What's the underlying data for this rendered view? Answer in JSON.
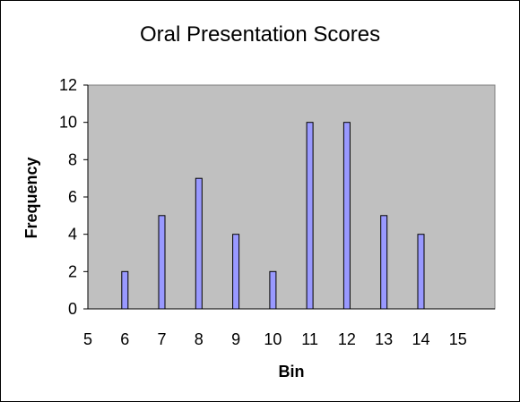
{
  "chart_data": {
    "type": "bar",
    "title": "Oral Presentation Scores",
    "xlabel": "Bin",
    "ylabel": "Frequency",
    "x": [
      6,
      7,
      8,
      9,
      10,
      11,
      12,
      13,
      14
    ],
    "values": [
      2,
      5,
      7,
      4,
      2,
      10,
      10,
      5,
      4
    ],
    "xlim": [
      5,
      16
    ],
    "ylim": [
      0,
      12
    ],
    "x_ticks": [
      "5",
      "6",
      "7",
      "8",
      "9",
      "10",
      "11",
      "12",
      "13",
      "14",
      "15"
    ],
    "y_ticks": [
      "0",
      "2",
      "4",
      "6",
      "8",
      "10",
      "12"
    ],
    "grid": false,
    "legend": "none",
    "colors": {
      "plot_background": "#c0c0c0",
      "bar_fill": "#9999ff",
      "bar_stroke": "#000000",
      "axis": "#000000"
    }
  }
}
